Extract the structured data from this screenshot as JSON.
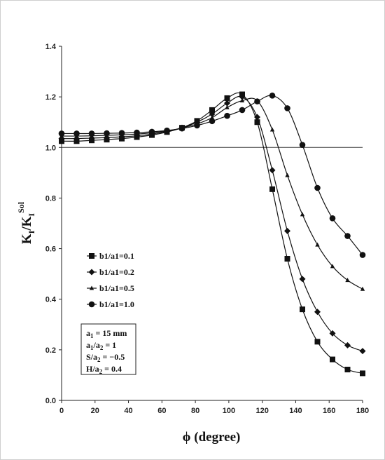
{
  "chart_data": {
    "type": "line",
    "xlabel": "ϕ (degree)",
    "ylabel_main": "K",
    "ylabel_sub1": "I",
    "ylabel_mid": "/K",
    "ylabel_sub2": "I",
    "ylabel_sup": "Sol",
    "xlim": [
      0,
      180
    ],
    "ylim": [
      0,
      1.4
    ],
    "xticks": [
      "0",
      "20",
      "40",
      "60",
      "80",
      "100",
      "120",
      "140",
      "160",
      "180"
    ],
    "yticks": [
      "0.0",
      "0.2",
      "0.4",
      "0.6",
      "0.8",
      "1.0",
      "1.2",
      "1.4"
    ],
    "reference_line": 1.0,
    "legend_placement": "middle-left",
    "series": [
      {
        "name": "b1/a1=0.1",
        "marker": "square",
        "x": [
          0,
          9,
          18,
          27,
          36,
          45,
          54,
          63,
          72,
          81,
          90,
          99,
          108,
          117,
          126,
          135,
          144,
          153,
          162,
          171,
          180
        ],
        "y": [
          1.025,
          1.025,
          1.028,
          1.031,
          1.035,
          1.041,
          1.049,
          1.061,
          1.078,
          1.105,
          1.148,
          1.195,
          1.21,
          1.1,
          0.835,
          0.56,
          0.36,
          0.232,
          0.162,
          0.122,
          0.107
        ]
      },
      {
        "name": "b1/a1=0.2",
        "marker": "diamond",
        "x": [
          0,
          9,
          18,
          27,
          36,
          45,
          54,
          63,
          72,
          81,
          90,
          99,
          108,
          117,
          126,
          135,
          144,
          153,
          162,
          171,
          180
        ],
        "y": [
          1.035,
          1.035,
          1.037,
          1.039,
          1.042,
          1.046,
          1.053,
          1.063,
          1.078,
          1.1,
          1.132,
          1.175,
          1.2,
          1.12,
          0.91,
          0.67,
          0.48,
          0.35,
          0.265,
          0.218,
          0.195
        ]
      },
      {
        "name": "b1/a1=0.5",
        "marker": "triangle",
        "x": [
          0,
          9,
          18,
          27,
          36,
          45,
          54,
          63,
          72,
          81,
          90,
          99,
          108,
          117,
          126,
          135,
          144,
          153,
          162,
          171,
          180
        ],
        "y": [
          1.045,
          1.045,
          1.046,
          1.048,
          1.05,
          1.053,
          1.058,
          1.065,
          1.077,
          1.093,
          1.118,
          1.158,
          1.185,
          1.185,
          1.07,
          0.89,
          0.735,
          0.615,
          0.53,
          0.475,
          0.44
        ]
      },
      {
        "name": "b1/a1=1.0",
        "marker": "circle",
        "x": [
          0,
          9,
          18,
          27,
          36,
          45,
          54,
          63,
          72,
          81,
          90,
          99,
          108,
          117,
          126,
          135,
          144,
          153,
          162,
          171,
          180
        ],
        "y": [
          1.055,
          1.055,
          1.055,
          1.056,
          1.057,
          1.059,
          1.062,
          1.067,
          1.075,
          1.087,
          1.104,
          1.125,
          1.148,
          1.182,
          1.205,
          1.155,
          1.01,
          0.84,
          0.72,
          0.65,
          0.575
        ]
      }
    ],
    "info_box": [
      {
        "base": "a",
        "sub": "1",
        "rest": " = 15 mm"
      },
      {
        "base": "a",
        "sub": "1",
        "mid": "/a",
        "sub2": "2",
        "rest": " = 1"
      },
      {
        "base": "S/a",
        "sub": "2",
        "rest": " = −0.5"
      },
      {
        "base": "H/a",
        "sub": "2",
        "rest": " = 0.4"
      }
    ]
  }
}
